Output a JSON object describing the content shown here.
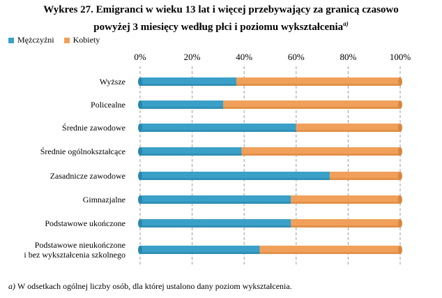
{
  "title": {
    "line1": "Wykres 27. Emigranci w wieku 13 lat i więcej przebywający za granicą czasowo",
    "line2": "powyżej 3 miesięcy według płci i poziomu wykształcenia",
    "superscript": "a)"
  },
  "footnote": {
    "marker": "a)",
    "text": "W odsetkach ogólnej liczby osób, dla której ustalono dany poziom wykształcenia."
  },
  "chart_data": {
    "type": "bar",
    "orientation": "horizontal",
    "stacked": true,
    "categories": [
      "Wyższe",
      "Policealne",
      "Średnie zawodowe",
      "Średnie ogólnokształcące",
      "Zasadnicze zawodowe",
      "Gimnazjalne",
      "Podstawowe ukończone",
      "Podstawowe nieukończone\ni bez wykształcenia szkolnego"
    ],
    "series": [
      {
        "name": "Mężczyźni",
        "color": "#3aa0c8",
        "values": [
          37,
          32,
          60,
          39,
          73,
          58,
          58,
          46
        ]
      },
      {
        "name": "Kobiety",
        "color": "#f0a05a",
        "values": [
          63,
          68,
          40,
          61,
          27,
          42,
          42,
          54
        ]
      }
    ],
    "xlim": [
      0,
      100
    ],
    "xticks": [
      "0%",
      "20%",
      "40%",
      "60%",
      "80%",
      "100%"
    ],
    "xaxis_position": "top",
    "grid": "vertical dashed",
    "legend_position": "top-left"
  }
}
